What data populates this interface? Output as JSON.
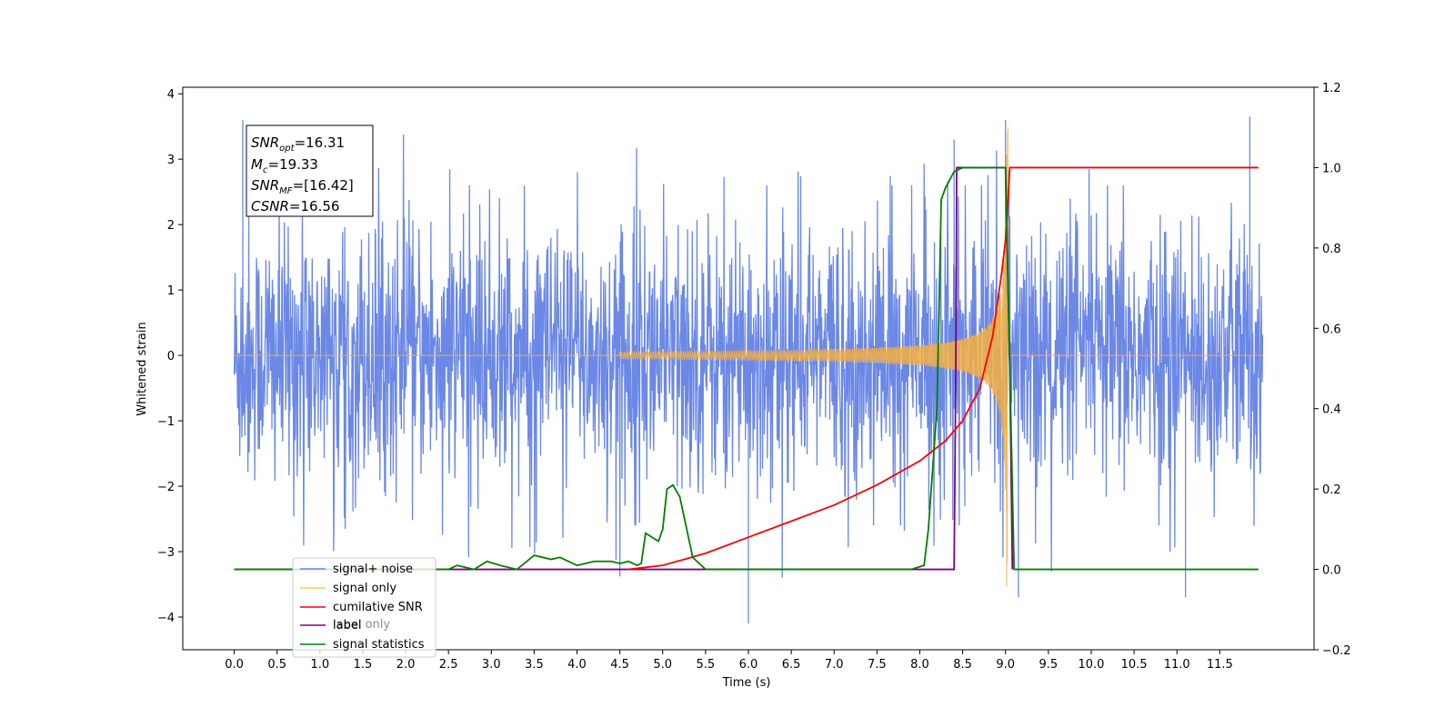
{
  "chart_data": {
    "type": "line",
    "xlabel": "Time (s)",
    "ylabel": "Whitened strain",
    "xlim": [
      -0.6,
      12.6
    ],
    "ylim": [
      -4.5,
      4.1
    ],
    "y2lim": [
      -0.2,
      1.2
    ],
    "xticks": [
      "0.0",
      "0.5",
      "1.0",
      "1.5",
      "2.0",
      "2.5",
      "3.0",
      "3.5",
      "4.0",
      "4.5",
      "5.0",
      "5.5",
      "6.0",
      "6.5",
      "7.0",
      "7.5",
      "8.0",
      "8.5",
      "9.0",
      "9.5",
      "10.0",
      "10.5",
      "11.0",
      "11.5"
    ],
    "yticks": [
      "4",
      "3",
      "2",
      "1",
      "0",
      "−1",
      "−2",
      "−3",
      "−4"
    ],
    "y2ticks": [
      "1.2",
      "1.0",
      "0.8",
      "0.6",
      "0.4",
      "0.2",
      "0.0",
      "−0.2"
    ],
    "grid": false,
    "legend_position": "lower-left",
    "annotation": {
      "snr_opt": "16.31",
      "mc": "19.33",
      "snr_mf": "[16.42]",
      "csnr": "16.56"
    },
    "series": [
      {
        "name": "signal+ noise",
        "axis": "left",
        "color": "#6b88e6",
        "description_values": "noise between about -2.3 and 2.3 with spikes to 3.7 and -4.1, t = 0.0 to 12.0",
        "x_range": [
          0.0,
          12.0
        ],
        "peaks": [
          [
            0.1,
            3.6
          ],
          [
            6.0,
            -4.1
          ],
          [
            8.4,
            3.3
          ],
          [
            9.0,
            3.6
          ],
          [
            9.15,
            -3.7
          ],
          [
            11.1,
            -3.7
          ],
          [
            11.85,
            3.65
          ]
        ]
      },
      {
        "name": "signal only",
        "axis": "left",
        "color": "#f5b042",
        "description_values": "chirp with growing amplitude from 0 to about 3.6 at t = 9.0 s, zero after 9.05 s",
        "x_range": [
          0.0,
          12.0
        ],
        "merger_time": 9.03,
        "peak_amplitude": 3.6
      },
      {
        "name": "cumilative SNR",
        "axis": "right",
        "color": "#ff0000",
        "x": [
          4.6,
          5.0,
          5.5,
          6.0,
          6.5,
          7.0,
          7.5,
          8.0,
          8.3,
          8.5,
          8.7,
          8.85,
          8.95,
          9.0,
          9.02,
          9.05,
          11.95
        ],
        "y": [
          0.0,
          0.01,
          0.04,
          0.08,
          0.12,
          0.16,
          0.21,
          0.27,
          0.32,
          0.37,
          0.45,
          0.58,
          0.73,
          0.82,
          0.88,
          1.0,
          1.0
        ]
      },
      {
        "name": "label",
        "axis": "right",
        "color": "#800080",
        "x": [
          0.0,
          8.4,
          8.42,
          8.43,
          9.0,
          9.05,
          9.08
        ],
        "y": [
          0.0,
          0.0,
          0.5,
          1.0,
          1.0,
          0.5,
          0.0
        ]
      },
      {
        "name": "signal statistics",
        "axis": "right",
        "color": "#008000",
        "x": [
          0.0,
          1.5,
          2.0,
          2.3,
          2.5,
          2.6,
          2.8,
          2.95,
          3.1,
          3.3,
          3.5,
          3.7,
          3.8,
          4.0,
          4.2,
          4.4,
          4.5,
          4.6,
          4.7,
          4.75,
          4.8,
          4.95,
          5.0,
          5.05,
          5.12,
          5.2,
          5.28,
          5.35,
          5.45,
          5.5,
          6.0,
          7.0,
          7.9,
          8.05,
          8.1,
          8.2,
          8.25,
          8.3,
          8.4,
          8.5,
          8.6,
          9.0,
          9.05,
          9.1,
          11.95
        ],
        "y": [
          0.0,
          0.0,
          0.0,
          0.0,
          0.0,
          0.01,
          0.0,
          0.02,
          0.01,
          0.0,
          0.035,
          0.025,
          0.03,
          0.01,
          0.02,
          0.02,
          0.015,
          0.02,
          0.01,
          0.015,
          0.09,
          0.07,
          0.1,
          0.2,
          0.21,
          0.18,
          0.1,
          0.03,
          0.01,
          0.0,
          0.0,
          0.0,
          0.0,
          0.01,
          0.1,
          0.4,
          0.92,
          0.95,
          0.99,
          1.0,
          1.0,
          1.0,
          0.5,
          0.0,
          0.0
        ]
      }
    ],
    "legend": [
      "signal+ noise",
      "signal only",
      "cumilative SNR",
      "label",
      "signal statistics"
    ],
    "legend_ghost_text": "label only",
    "colors": {
      "noise": "#6b88e6",
      "signal": "#f5b042",
      "csnr": "#ff0000",
      "label": "#800080",
      "stats": "#008000",
      "legend_signal_only": "#ffc75f"
    }
  }
}
